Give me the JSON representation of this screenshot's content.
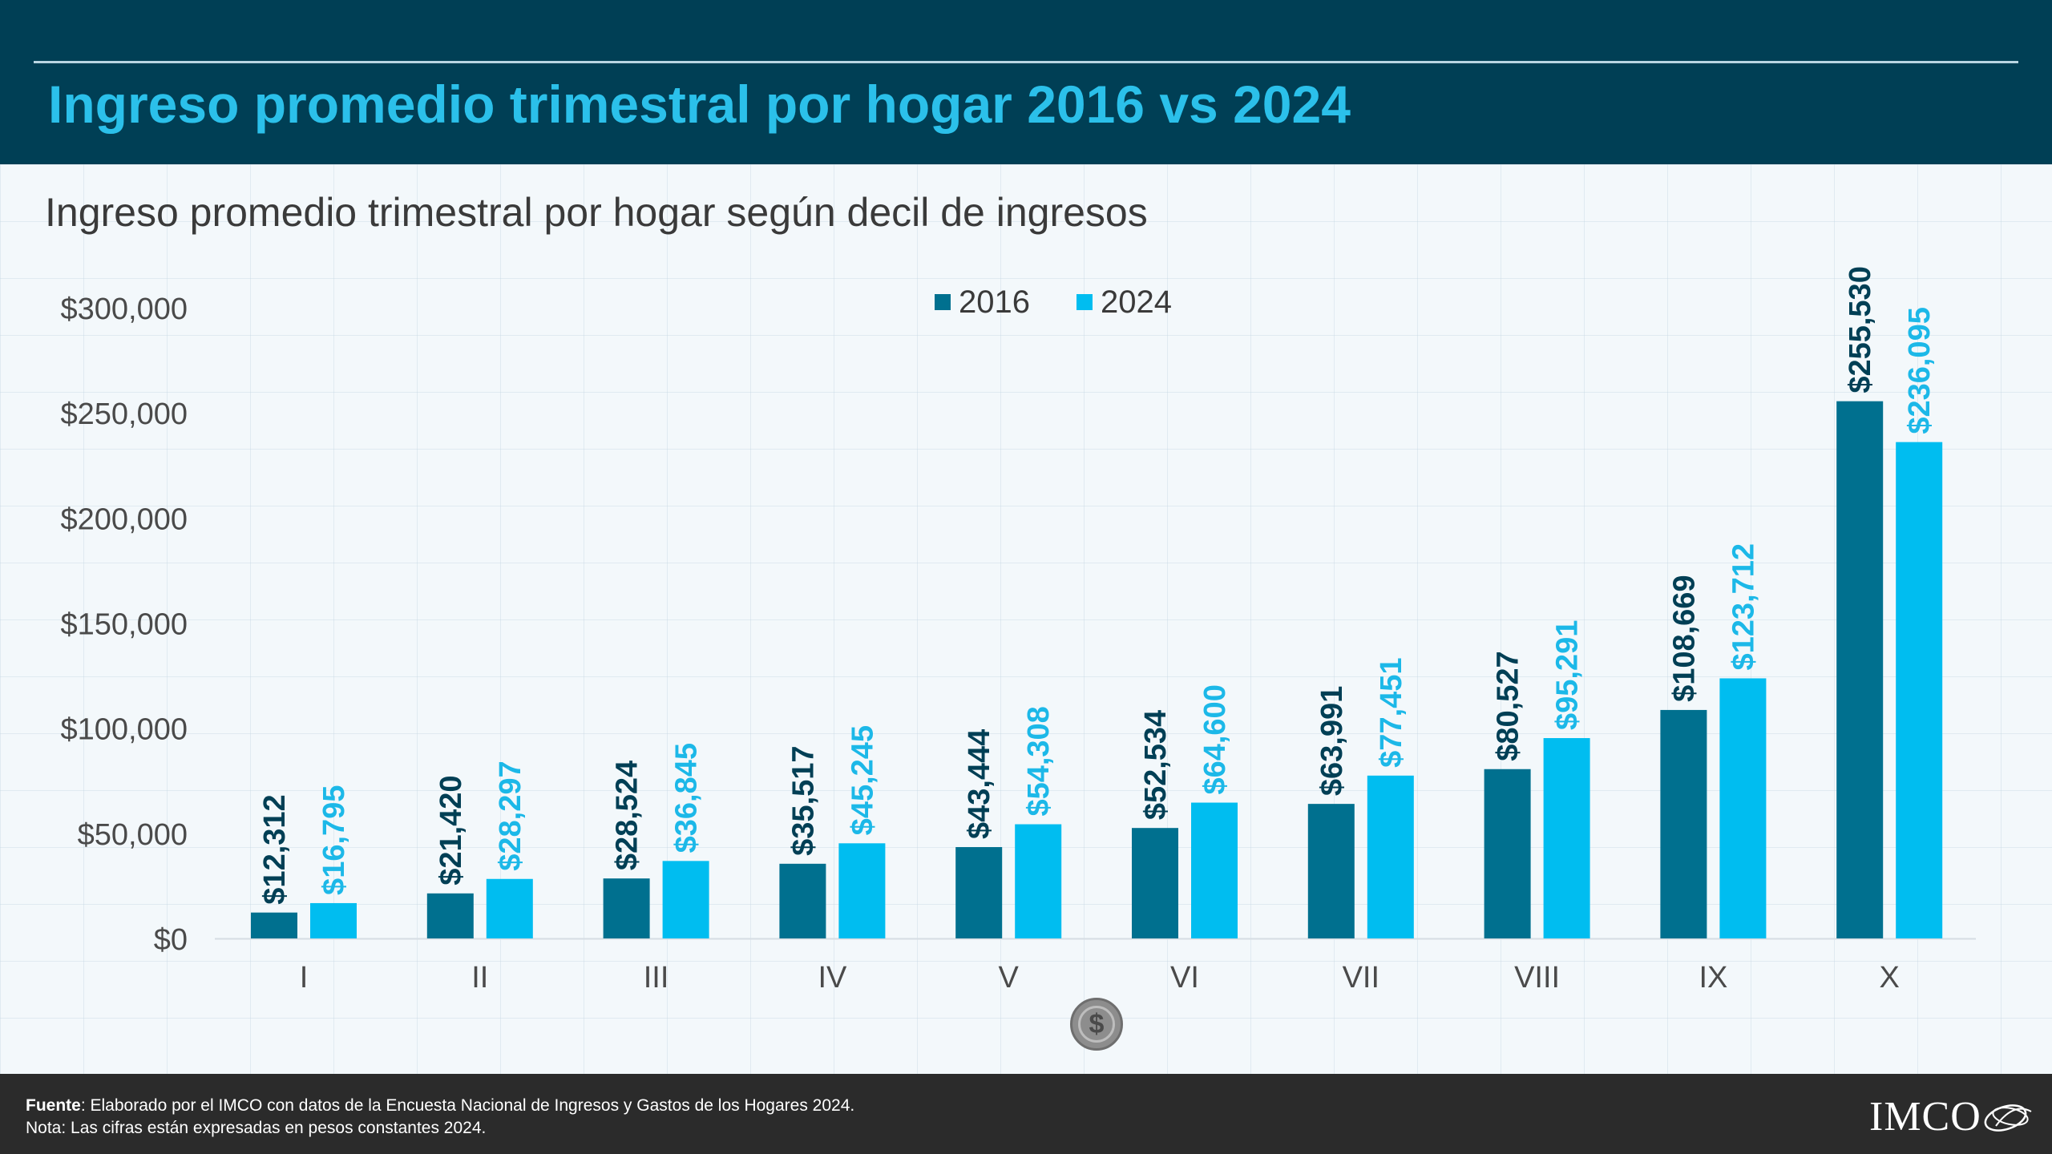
{
  "header": {
    "title": "Ingreso promedio trimestral por hogar 2016 vs 2024"
  },
  "chart_data": {
    "type": "bar",
    "title": "Ingreso promedio trimestral por hogar según decil de ingresos",
    "xlabel": "",
    "ylabel": "",
    "categories": [
      "I",
      "II",
      "III",
      "IV",
      "V",
      "VI",
      "VII",
      "VIII",
      "IX",
      "X"
    ],
    "series": [
      {
        "name": "2016",
        "color": "#00708f",
        "label_color": "#003f55",
        "values": [
          12312,
          21420,
          28524,
          35517,
          43444,
          52534,
          63991,
          80527,
          108669,
          255530
        ],
        "labels": [
          "$12,312",
          "$21,420",
          "$28,524",
          "$35,517",
          "$43,444",
          "$52,534",
          "$63,991",
          "$80,527",
          "$108,669",
          "$255,530"
        ]
      },
      {
        "name": "2024",
        "color": "#00bdf0",
        "label_color": "#1cb8e8",
        "values": [
          16795,
          28297,
          36845,
          45245,
          54308,
          64600,
          77451,
          95291,
          123712,
          236095
        ],
        "labels": [
          "$16,795",
          "$28,297",
          "$36,845",
          "$45,245",
          "$54,308",
          "$64,600",
          "$77,451",
          "$95,291",
          "$123,712",
          "$236,095"
        ]
      }
    ],
    "ylim": [
      0,
      300000
    ],
    "yticks": [
      0,
      50000,
      100000,
      150000,
      200000,
      250000,
      300000
    ],
    "ytick_labels": [
      "$0",
      "$50,000",
      "$100,000",
      "$150,000",
      "$200,000",
      "$250,000",
      "$300,000"
    ],
    "legend_position": "top-center",
    "grid": false
  },
  "icons": {
    "coin": "dollar-coin-icon",
    "coin_glyph": "$"
  },
  "footer": {
    "source_label": "Fuente",
    "source_text": ": Elaborado por el IMCO con datos de la Encuesta Nacional de Ingresos y Gastos de los Hogares 2024.",
    "note": "Nota: Las cifras están expresadas en pesos constantes 2024.",
    "logo_text": "IMCO"
  },
  "colors": {
    "header_bg": "#003f55",
    "title": "#2bc0ea",
    "footer_bg": "#2b2b2b"
  }
}
